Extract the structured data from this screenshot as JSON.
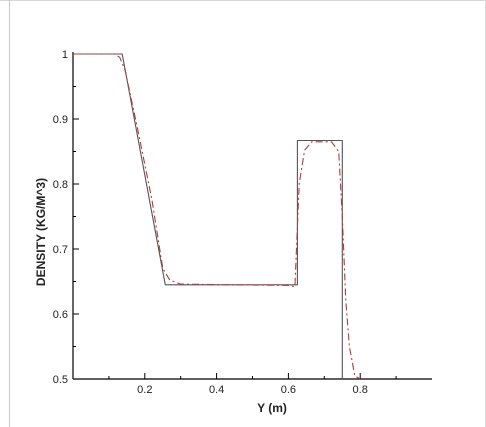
{
  "chart_data": {
    "type": "line",
    "title": "",
    "xlabel": "Y (m)",
    "ylabel": "DENSITY (KG/M^3)",
    "xlim": [
      0,
      1
    ],
    "ylim": [
      0.5,
      1
    ],
    "xticks": [
      "0.2",
      "0.4",
      "0.6",
      "0.8"
    ],
    "yticks": [
      "0.5",
      "0.6",
      "0.7",
      "0.8",
      "0.9",
      "1"
    ],
    "grid": false,
    "legend": "none",
    "series": [
      {
        "style": "solid",
        "color": "#555555",
        "points": [
          [
            0.0,
            1.0
          ],
          [
            0.137,
            1.0
          ],
          [
            0.257,
            0.645
          ],
          [
            0.625,
            0.645
          ],
          [
            0.625,
            0.867
          ],
          [
            0.75,
            0.867
          ],
          [
            0.75,
            0.5
          ]
        ]
      },
      {
        "style": "dash-dot",
        "color": "#b23a3a",
        "points": [
          [
            0.0,
            1.0
          ],
          [
            0.115,
            1.0
          ],
          [
            0.13,
            0.995
          ],
          [
            0.145,
            0.975
          ],
          [
            0.18,
            0.885
          ],
          [
            0.22,
            0.775
          ],
          [
            0.25,
            0.67
          ],
          [
            0.27,
            0.652
          ],
          [
            0.3,
            0.646
          ],
          [
            0.45,
            0.645
          ],
          [
            0.6,
            0.644
          ],
          [
            0.618,
            0.642
          ],
          [
            0.63,
            0.8
          ],
          [
            0.645,
            0.852
          ],
          [
            0.665,
            0.865
          ],
          [
            0.72,
            0.865
          ],
          [
            0.74,
            0.85
          ],
          [
            0.75,
            0.75
          ],
          [
            0.76,
            0.62
          ],
          [
            0.77,
            0.55
          ],
          [
            0.785,
            0.505
          ],
          [
            0.8,
            0.5
          ]
        ]
      }
    ]
  }
}
